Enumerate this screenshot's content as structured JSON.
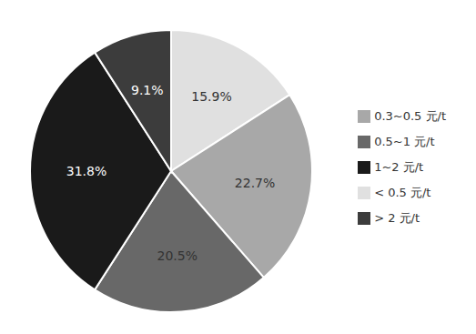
{
  "chart_data": {
    "type": "pie",
    "categories": [
      "< 0.5 元/t",
      "0.3~0.5 元/t",
      "0.5~1 元/t",
      "1~2 元/t",
      "> 2 元/t"
    ],
    "values": [
      15.9,
      22.7,
      20.5,
      31.8,
      9.1
    ],
    "value_labels": [
      "15.9%",
      "22.7%",
      "20.5%",
      "31.8%",
      "9.1%"
    ],
    "colors": [
      "#e0e0e0",
      "#a8a8a8",
      "#686868",
      "#1a1a1a",
      "#3c3c3c"
    ],
    "data_labels": true,
    "legend": "right"
  }
}
